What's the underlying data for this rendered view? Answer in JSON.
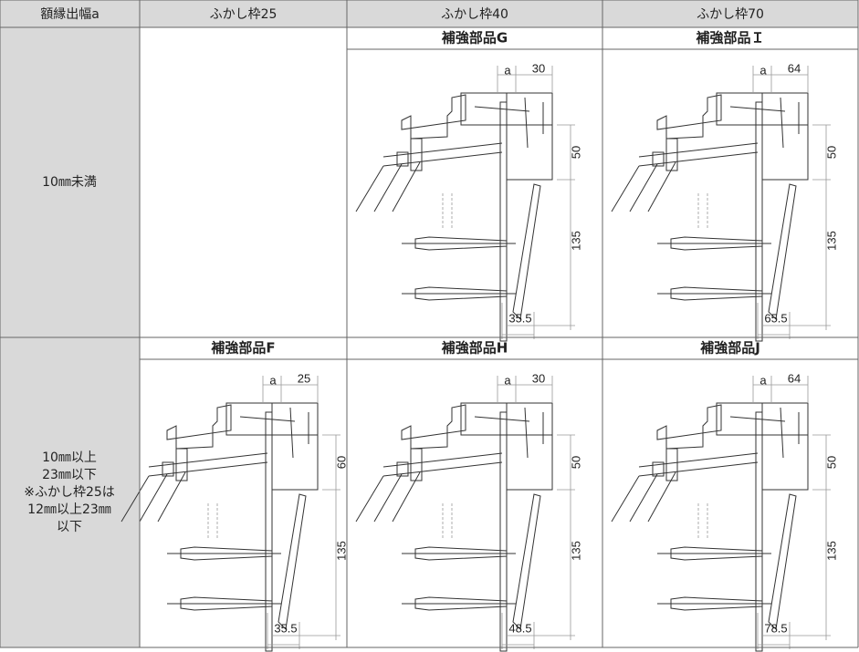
{
  "header": {
    "columns": [
      "額縁出幅a",
      "ふかし枠25",
      "ふかし枠40",
      "ふかし枠70"
    ]
  },
  "rows": [
    {
      "label": [
        "10㎜未満"
      ],
      "cells": [
        null,
        {
          "part": "補強部品G",
          "dims": [
            "a",
            "30",
            "50",
            "135",
            "35.5"
          ]
        },
        {
          "part": "補強部品Ｉ",
          "dims": [
            "a",
            "64",
            "50",
            "135",
            "65.5"
          ]
        }
      ]
    },
    {
      "label": [
        "10㎜以上",
        "23㎜以下",
        "※ふかし枠25は",
        "12㎜以上23㎜",
        "以下"
      ],
      "cells": [
        {
          "part": "補強部品F",
          "dims": [
            "a",
            "25",
            "60",
            "135",
            "35.5"
          ]
        },
        {
          "part": "補強部品H",
          "dims": [
            "a",
            "30",
            "50",
            "135",
            "48.5"
          ]
        },
        {
          "part": "補強部品J",
          "dims": [
            "a",
            "64",
            "50",
            "135",
            "78.5"
          ]
        }
      ]
    }
  ]
}
